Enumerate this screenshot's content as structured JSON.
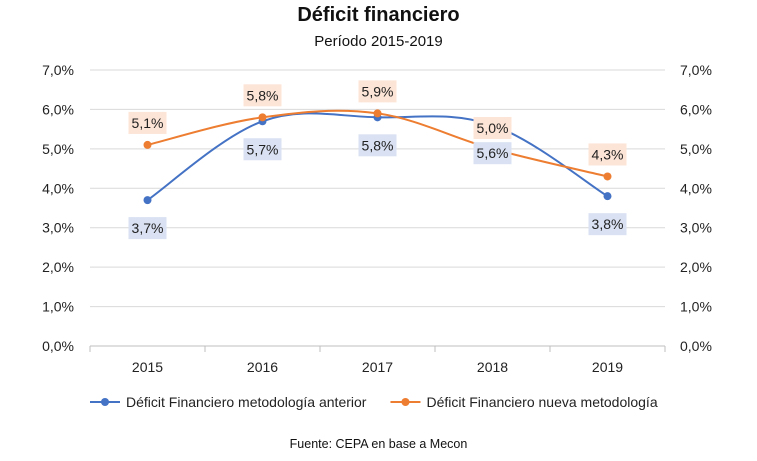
{
  "chart_data": {
    "type": "line",
    "title": "Déficit financiero",
    "subtitle": "Período 2015-2019",
    "categories": [
      "2015",
      "2016",
      "2017",
      "2018",
      "2019"
    ],
    "ylim": [
      0,
      7
    ],
    "y_ticks": [
      "0,0%",
      "1,0%",
      "2,0%",
      "3,0%",
      "4,0%",
      "5,0%",
      "6,0%",
      "7,0%"
    ],
    "y2_ticks": [
      "0,0%",
      "1,0%",
      "2,0%",
      "3,0%",
      "4,0%",
      "5,0%",
      "6,0%",
      "7,0%"
    ],
    "grid": true,
    "smooth": true,
    "legend_position": "bottom",
    "series": [
      {
        "name": "Déficit Financiero metodología anterior",
        "values": [
          3.7,
          5.7,
          5.8,
          5.6,
          3.8
        ],
        "labels": [
          "3,7%",
          "5,7%",
          "5,8%",
          "5,6%",
          "3,8%"
        ],
        "color": "#4472C4",
        "label_bg": "#D9E1F2"
      },
      {
        "name": "Déficit Financiero nueva metodología",
        "values": [
          5.1,
          5.8,
          5.9,
          5.0,
          4.3
        ],
        "labels": [
          "5,1%",
          "5,8%",
          "5,9%",
          "5,0%",
          "4,3%"
        ],
        "color": "#ED7D31",
        "label_bg": "#FCE4D6"
      }
    ],
    "source": "Fuente: CEPA en base a Mecon"
  }
}
